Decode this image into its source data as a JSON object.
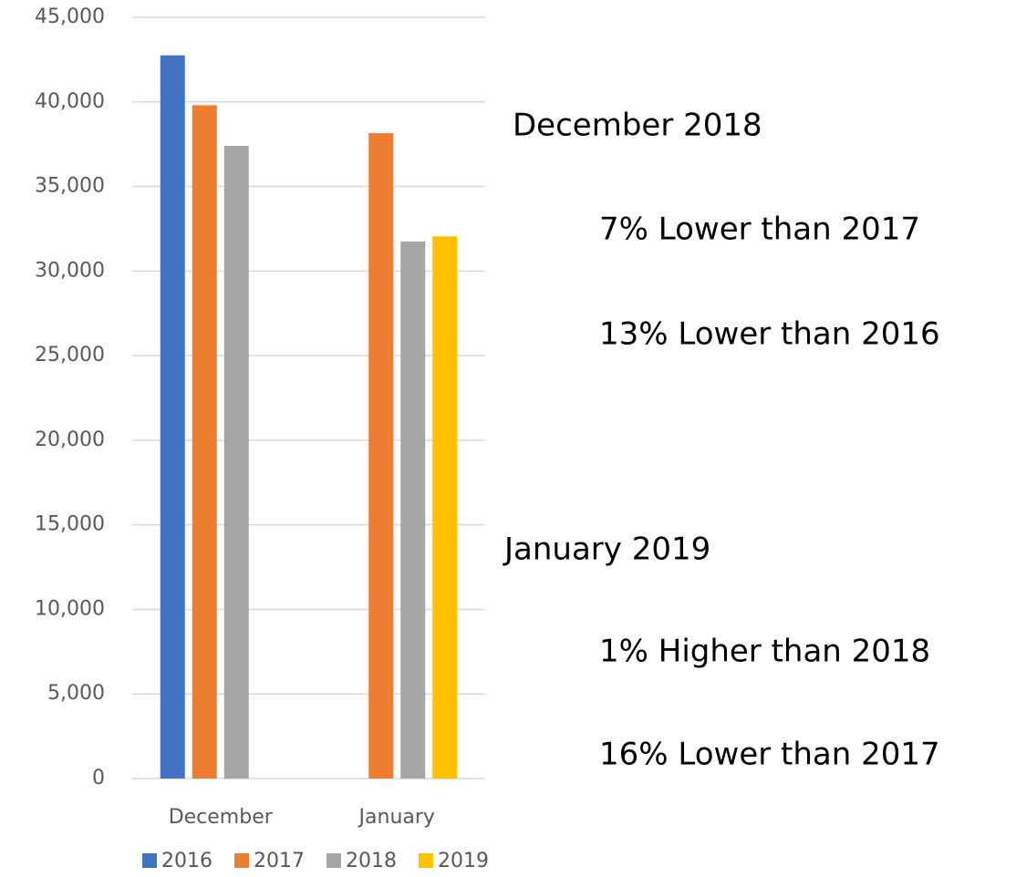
{
  "chart_data": {
    "type": "bar",
    "categories": [
      "December",
      "January"
    ],
    "series": [
      {
        "name": "2016",
        "color": "#4472c4",
        "values": [
          42750,
          null
        ]
      },
      {
        "name": "2017",
        "color": "#ed7d31",
        "values": [
          39800,
          38150
        ]
      },
      {
        "name": "2018",
        "color": "#a5a5a5",
        "values": [
          37400,
          31750
        ]
      },
      {
        "name": "2019",
        "color": "#ffc000",
        "values": [
          null,
          32050
        ]
      }
    ],
    "ylim": [
      0,
      45000
    ],
    "yticks": [
      0,
      {
        "value": 5000,
        "label": "5,000"
      },
      {
        "value": 10000,
        "label": "10,000"
      },
      {
        "value": 15000,
        "label": "15,000"
      },
      {
        "value": 20000,
        "label": "20,000"
      },
      {
        "value": 25000,
        "label": "25,000"
      },
      {
        "value": 30000,
        "label": "30,000"
      },
      {
        "value": 35000,
        "label": "35,000"
      },
      {
        "value": 40000,
        "label": "40,000"
      },
      {
        "value": 45000,
        "label": "45,000"
      }
    ],
    "grid": true,
    "legend": "bottom",
    "annotations": [
      "December 2018",
      "7% Lower than 2017",
      "13% Lower than 2016",
      "January 2019",
      "1% Higher than 2018",
      "16% Lower than 2017"
    ]
  }
}
